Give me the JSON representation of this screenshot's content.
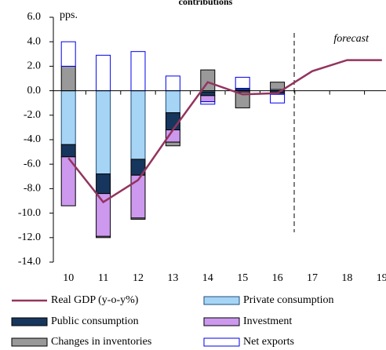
{
  "chart_data": {
    "type": "bar",
    "title": "contributions",
    "y_unit": "pps.",
    "annotation": "forecast",
    "categories": [
      "10",
      "11",
      "12",
      "13",
      "14",
      "15",
      "16",
      "17",
      "18",
      "19"
    ],
    "series": [
      {
        "name": "Private consumption",
        "color": "#a6d4f5",
        "values": [
          -4.4,
          -6.8,
          -5.6,
          -1.8,
          -0.1,
          0,
          0.1,
          null,
          null,
          null
        ]
      },
      {
        "name": "Public consumption",
        "color": "#17365d",
        "values": [
          -1.0,
          -1.6,
          -1.3,
          -1.4,
          -0.3,
          0.2,
          -0.2,
          null,
          null,
          null
        ]
      },
      {
        "name": "Investment",
        "color": "#cc99ee",
        "values": [
          -4.0,
          -3.5,
          -3.5,
          -1.0,
          -0.5,
          -0.1,
          -0.1,
          null,
          null,
          null
        ]
      },
      {
        "name": "Changes in inventories",
        "color": "#999999",
        "values": [
          2.0,
          -0.1,
          -0.1,
          -0.3,
          1.7,
          -1.3,
          0.6,
          null,
          null,
          null
        ]
      },
      {
        "name": "Net exports",
        "color": "#ffffff",
        "values": [
          2.0,
          2.9,
          3.2,
          1.2,
          -0.2,
          0.9,
          -0.7,
          null,
          null,
          null
        ]
      }
    ],
    "line_series": {
      "name": "Real GDP (y-o-y%)",
      "color": "#93345e",
      "values": [
        -5.5,
        -9.1,
        -7.3,
        -3.2,
        0.7,
        -0.3,
        -0.2,
        1.6,
        2.5,
        2.5
      ]
    },
    "ylim": [
      -14,
      6
    ],
    "yticks": [
      {
        "value": -14,
        "label": "-14.0"
      },
      {
        "value": -12,
        "label": "-12.0"
      },
      {
        "value": -10,
        "label": "-10.0"
      },
      {
        "value": -8,
        "label": "-8.0"
      },
      {
        "value": -6,
        "label": "-6.0"
      },
      {
        "value": -4,
        "label": "-4.0"
      },
      {
        "value": -2,
        "label": "-2.0"
      },
      {
        "value": 0,
        "label": "0.0"
      },
      {
        "value": 2,
        "label": "2.0"
      },
      {
        "value": 4,
        "label": "4.0"
      },
      {
        "value": 6,
        "label": "6.0"
      }
    ]
  }
}
